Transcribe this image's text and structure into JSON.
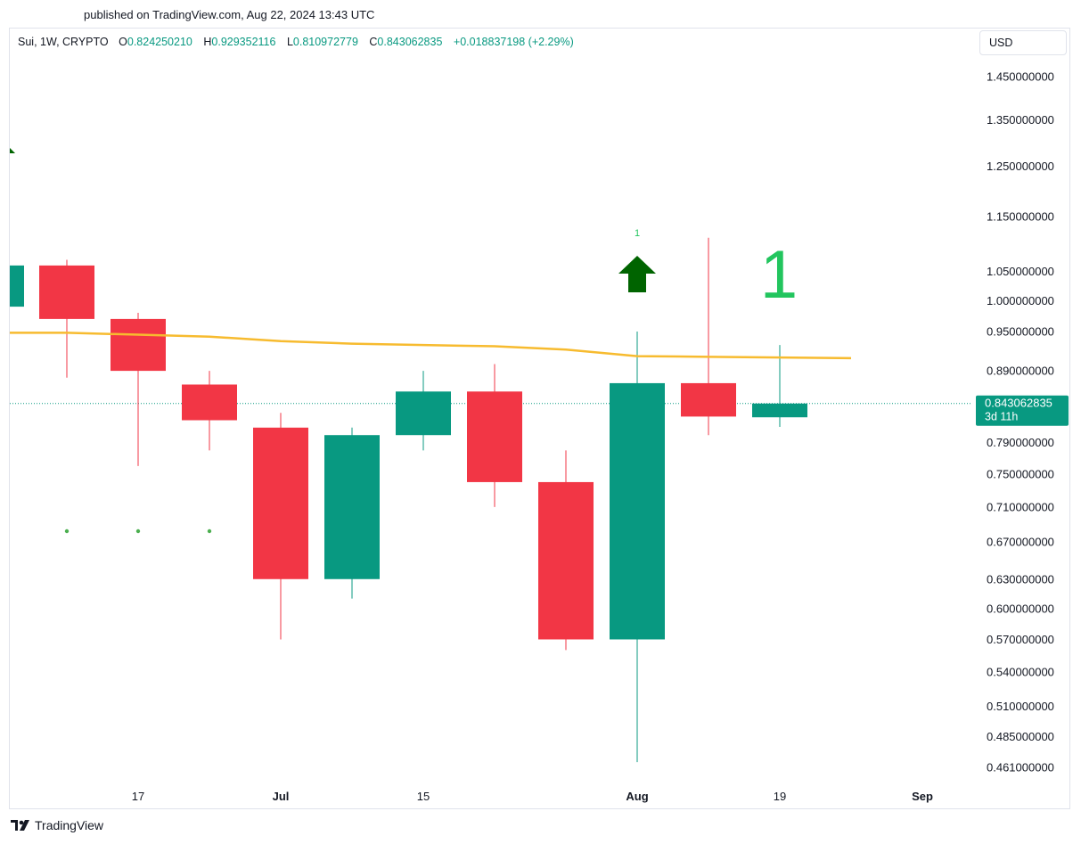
{
  "header": {
    "published_text": "published on TradingView.com, Aug 22, 2024 13:43 UTC"
  },
  "legend": {
    "symbol": "Sui, 1W, CRYPTO",
    "open_label": "O",
    "open": "0.824250210",
    "high_label": "H",
    "high": "0.929352116",
    "low_label": "L",
    "low": "0.810972779",
    "close_label": "C",
    "close": "0.843062835",
    "change": "+0.018837198 (+2.29%)"
  },
  "currency": "USD",
  "price_tag": {
    "price": "0.843062835",
    "countdown": "3d 11h"
  },
  "annotations": {
    "small_count": "1",
    "big_count": "1"
  },
  "footer": {
    "brand": "TradingView"
  },
  "colors": {
    "up": "#089981",
    "down": "#f23645",
    "ma": "#f7bb2f",
    "arrow": "#006400",
    "count": "#22c55e",
    "dots": "#4caf50"
  },
  "chart_data": {
    "type": "candlestick",
    "scale": "log",
    "y_ticks": [
      "1.450000000",
      "1.350000000",
      "1.250000000",
      "1.150000000",
      "1.050000000",
      "1.000000000",
      "0.950000000",
      "0.890000000",
      "0.790000000",
      "0.750000000",
      "0.710000000",
      "0.670000000",
      "0.630000000",
      "0.600000000",
      "0.570000000",
      "0.540000000",
      "0.510000000",
      "0.485000000",
      "0.461000000"
    ],
    "x_ticks": [
      {
        "label": "17",
        "bold": false,
        "index": 1
      },
      {
        "label": "Jul",
        "bold": true,
        "index": 3
      },
      {
        "label": "15",
        "bold": false,
        "index": 5
      },
      {
        "label": "Aug",
        "bold": true,
        "index": 8
      },
      {
        "label": "19",
        "bold": false,
        "index": 10
      },
      {
        "label": "Sep",
        "bold": true,
        "index": 12
      }
    ],
    "candles": [
      {
        "o": 0.99,
        "h": 1.06,
        "l": 0.9,
        "c": 1.06
      },
      {
        "o": 1.06,
        "h": 1.07,
        "l": 0.88,
        "c": 0.97
      },
      {
        "o": 0.97,
        "h": 0.98,
        "l": 0.76,
        "c": 0.89
      },
      {
        "o": 0.87,
        "h": 0.89,
        "l": 0.78,
        "c": 0.82
      },
      {
        "o": 0.81,
        "h": 0.83,
        "l": 0.57,
        "c": 0.63
      },
      {
        "o": 0.63,
        "h": 0.81,
        "l": 0.61,
        "c": 0.8
      },
      {
        "o": 0.8,
        "h": 0.89,
        "l": 0.78,
        "c": 0.86
      },
      {
        "o": 0.86,
        "h": 0.9,
        "l": 0.71,
        "c": 0.74
      },
      {
        "o": 0.74,
        "h": 0.78,
        "l": 0.56,
        "c": 0.57
      },
      {
        "o": 0.57,
        "h": 0.95,
        "l": 0.465,
        "c": 0.872
      },
      {
        "o": 0.872,
        "h": 1.11,
        "l": 0.8,
        "c": 0.825
      },
      {
        "o": 0.824,
        "h": 0.929,
        "l": 0.811,
        "c": 0.843
      }
    ],
    "moving_average": [
      0.948,
      0.948,
      0.945,
      0.942,
      0.935,
      0.931,
      0.929,
      0.927,
      0.922,
      0.912,
      0.911,
      0.91,
      0.909
    ],
    "last_price": 0.843062835
  }
}
